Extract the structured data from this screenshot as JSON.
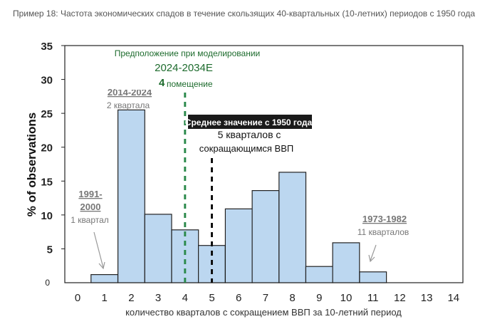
{
  "caption": "Пример 18: Частота экономических спадов в течение скользящих 40-квартальных (10-летних) периодов с 1950 года",
  "chart_data": {
    "type": "bar",
    "categories": [
      "0",
      "1",
      "2",
      "3",
      "4",
      "5",
      "6",
      "7",
      "8",
      "9",
      "10",
      "11",
      "12",
      "13",
      "14"
    ],
    "values": [
      0,
      1.2,
      25.5,
      10.1,
      7.8,
      5.5,
      10.9,
      13.6,
      16.3,
      2.4,
      5.9,
      1.6,
      0,
      0,
      0
    ],
    "xlabel": "количество кварталов с сокращением ВВП за 10-летний период",
    "ylabel": "% of observations",
    "ylim": [
      0,
      35
    ],
    "yticks": [
      "0",
      "5",
      "10",
      "15",
      "20",
      "25",
      "30",
      "35"
    ],
    "grid": false,
    "bar_color": "#bcd7f0",
    "bar_edge_color": "#222222",
    "annotations": {
      "a1991_line1": "1991-",
      "a1991_line2": "2000",
      "a1991_sub": "1 квартал",
      "a2014_title": "2014-2024",
      "a2014_sub": "2 квартала",
      "a1973_title": "1973-1982",
      "a1973_sub": "11 кварталов",
      "assumption_title": "Предположение при моделировании",
      "assumption_period": "2024-2034E",
      "assumption_number": "4",
      "assumption_word": "помещение",
      "mean_title": "Среднее значение с 1950 года:",
      "mean_line1": "5 кварталов с",
      "mean_line2": "сокращающимся ВВП"
    },
    "reference_lines": [
      {
        "x": 4,
        "color": "#2e8b4e",
        "style": "dashed"
      },
      {
        "x": 5,
        "color": "#111111",
        "style": "dashed"
      }
    ],
    "colors": {
      "green": "#1d6b2d",
      "gray": "#777777",
      "mean_box": "#1a1a1a"
    }
  }
}
